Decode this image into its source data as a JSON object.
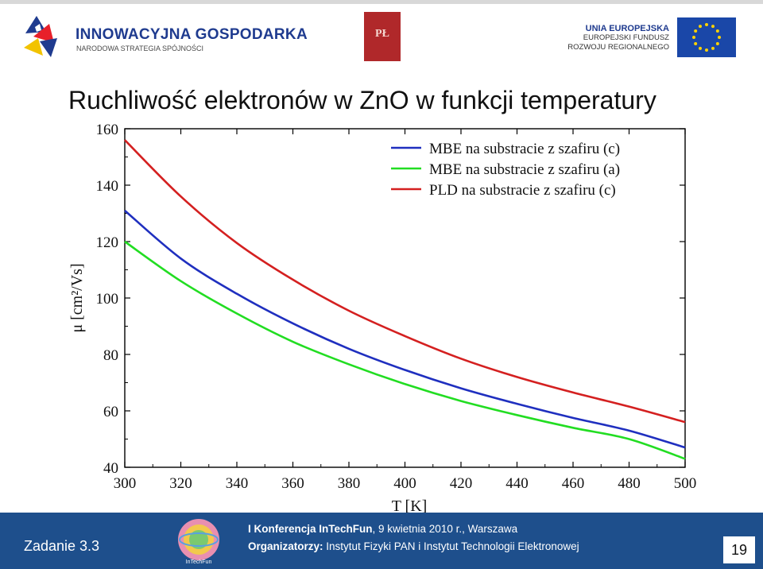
{
  "header": {
    "program_title": "INNOWACYJNA GOSPODARKA",
    "program_subtitle": "NARODOWA STRATEGIA SPÓJNOŚCI",
    "pl_logo_text": "PŁ",
    "eu_line1": "UNIA EUROPEJSKA",
    "eu_line2": "EUROPEJSKI FUNDUSZ",
    "eu_line3": "ROZWOJU REGIONALNEGO"
  },
  "slide": {
    "title": "Ruchliwość elektronów w ZnO w funkcji temperatury"
  },
  "colors": {
    "series_blue": "#1f2fbf",
    "series_green": "#22dd22",
    "series_red": "#d42020",
    "footer_bg": "#1e4f8c"
  },
  "chart_data": {
    "type": "line",
    "xlabel": "T [K]",
    "ylabel": "μ [cm²/Vs]",
    "xlim": [
      300,
      500
    ],
    "ylim": [
      40,
      160
    ],
    "xticks": [
      300,
      320,
      340,
      360,
      380,
      400,
      420,
      440,
      460,
      480,
      500
    ],
    "yticks": [
      40,
      60,
      80,
      100,
      120,
      140,
      160
    ],
    "legend_position": "top-right",
    "grid": false,
    "x": [
      300,
      320,
      340,
      360,
      380,
      400,
      420,
      440,
      460,
      480,
      500
    ],
    "series": [
      {
        "name": "MBE na substracie z szafiru (c)",
        "color": "#1f2fbf",
        "values": [
          131,
          114,
          101.5,
          91,
          82,
          74.5,
          68,
          62.5,
          57.5,
          53,
          47
        ]
      },
      {
        "name": "MBE na substracie z szafiru (a)",
        "color": "#22dd22",
        "values": [
          120,
          106,
          94.5,
          84.5,
          76.5,
          69.5,
          63.5,
          58.5,
          54,
          50,
          43
        ]
      },
      {
        "name": "PLD na substracie z szafiru (c)",
        "color": "#d42020",
        "values": [
          156,
          136,
          119.5,
          106.5,
          95.5,
          86.5,
          78.5,
          72,
          66.5,
          61.5,
          56
        ]
      }
    ]
  },
  "footer": {
    "task": "Zadanie 3.3",
    "logo_caption": "InTechFun",
    "conference_bold": "I Konferencja InTechFun",
    "conference_rest": ", 9 kwietnia 2010 r.,  Warszawa",
    "organizers_label": "Organizatorzy:",
    "organizers_text": " Instytut Fizyki PAN i Instytut Technologii Elektronowej",
    "page_number": "19"
  }
}
